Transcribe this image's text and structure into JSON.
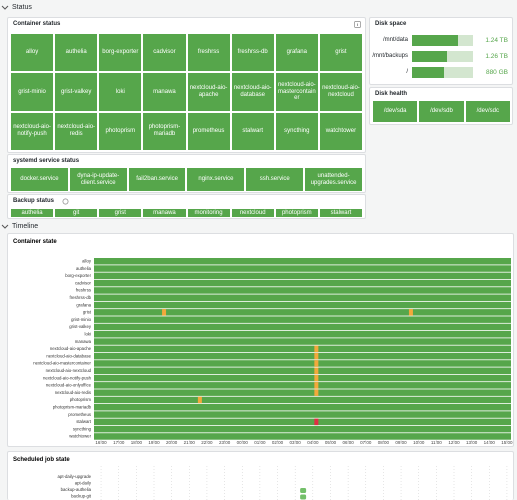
{
  "status_row": {
    "title": "Status"
  },
  "timeline_row": {
    "title": "Timeline"
  },
  "container_status": {
    "title": "Container status",
    "color": "#56a64b",
    "items": [
      "alloy",
      "authelia",
      "borg-exporter",
      "cadvisor",
      "freshrss",
      "freshrss-db",
      "grafana",
      "grist",
      "grist-minio",
      "grist-valkey",
      "loki",
      "manawa",
      "nextcloud-aio-apache",
      "nextcloud-aio-database",
      "nextcloud-aio-mastercontainer",
      "nextcloud-aio-nextcloud",
      "nextcloud-aio-notify-push",
      "nextcloud-aio-redis",
      "photoprism",
      "photoprism-mariadb",
      "prometheus",
      "stalwart",
      "syncthing",
      "watchtower"
    ]
  },
  "systemd_status": {
    "title": "systemd service status",
    "items": [
      "docker.service",
      "dyna-ip-update-client.service",
      "fail2ban.service",
      "nginx.service",
      "ssh.service",
      "unattended-upgrades.service"
    ]
  },
  "backup_status": {
    "title": "Backup status",
    "items": [
      "authelia",
      "git",
      "grist",
      "manawa",
      "monitoring",
      "nextcloud",
      "photoprism",
      "stalwart"
    ]
  },
  "disk_space": {
    "title": "Disk space",
    "rows": [
      {
        "mount": "/mnt/data",
        "value_label": "1.24 TB",
        "percent_used": 75
      },
      {
        "mount": "/mnt/backups",
        "value_label": "1.26 TB",
        "percent_used": 58
      },
      {
        "mount": "/",
        "value_label": "880 GB",
        "percent_used": 52
      }
    ]
  },
  "disk_health": {
    "title": "Disk health",
    "items": [
      "/dev/sda",
      "/dev/sdb",
      "/dev/sdc"
    ]
  },
  "chart_data": {
    "type": "state-timeline",
    "title": "Container state",
    "color": "#56a64b",
    "categories": [
      "alloy",
      "authelia",
      "borg-exporter",
      "cadvisor",
      "freshrss",
      "freshrss-db",
      "grafana",
      "grist",
      "grist-minio",
      "grist-valkey",
      "loki",
      "manawa",
      "nextcloud-aio-apache",
      "nextcloud-aio-database",
      "nextcloud-aio-mastercontainer",
      "nextcloud-aio-nextcloud",
      "nextcloud-aio-notify-push",
      "nextcloud-aio-onlyoffice",
      "nextcloud-aio-redis",
      "photoprism",
      "photoprism-mariadb",
      "prometheus",
      "stalwart",
      "syncthing",
      "watchtower"
    ],
    "xlim": [
      -0.4,
      23.23
    ],
    "xticks": [
      {
        "value": 0,
        "label": "16:00"
      },
      {
        "value": 1,
        "label": "17:00"
      },
      {
        "value": 2,
        "label": "18:00"
      },
      {
        "value": 3,
        "label": "19:00"
      },
      {
        "value": 4,
        "label": "20:00"
      },
      {
        "value": 5,
        "label": "21:00"
      },
      {
        "value": 6,
        "label": "22:00"
      },
      {
        "value": 7,
        "label": "23:00"
      },
      {
        "value": 8,
        "label": "00:00"
      },
      {
        "value": 9,
        "label": "01:00"
      },
      {
        "value": 10,
        "label": "02:00"
      },
      {
        "value": 11,
        "label": "03:00"
      },
      {
        "value": 12,
        "label": "04:00"
      },
      {
        "value": 13,
        "label": "05:00"
      },
      {
        "value": 14,
        "label": "06:00"
      },
      {
        "value": 15,
        "label": "07:00"
      },
      {
        "value": 16,
        "label": "08:00"
      },
      {
        "value": 17,
        "label": "09:00"
      },
      {
        "value": 18,
        "label": "10:00"
      },
      {
        "value": 19,
        "label": "11:00"
      },
      {
        "value": 20,
        "label": "12:00"
      },
      {
        "value": 21,
        "label": "13:00"
      },
      {
        "value": 22,
        "label": "14:00"
      },
      {
        "value": 23,
        "label": "15:00"
      }
    ],
    "events": [
      {
        "row": 7,
        "x": 3.57,
        "color": "#f2a93b"
      },
      {
        "row": 7,
        "x": 17.56,
        "color": "#f2a93b"
      },
      {
        "row": 19,
        "x": 5.6,
        "color": "#f2a93b"
      },
      {
        "row": 12,
        "x": 12.2,
        "color": "#f2a93b"
      },
      {
        "row": 13,
        "x": 12.2,
        "color": "#f2a93b"
      },
      {
        "row": 14,
        "x": 12.2,
        "color": "#f2a93b"
      },
      {
        "row": 15,
        "x": 12.2,
        "color": "#f2a93b"
      },
      {
        "row": 16,
        "x": 12.2,
        "color": "#f2a93b"
      },
      {
        "row": 17,
        "x": 12.2,
        "color": "#f2a93b"
      },
      {
        "row": 18,
        "x": 12.2,
        "color": "#f2a93b"
      },
      {
        "row": 22,
        "x": 12.2,
        "color": "#e02f44"
      }
    ]
  },
  "scheduled_jobs": {
    "title": "Scheduled job state",
    "color": "#73bf69",
    "categories": [
      "apt-daily-upgrade",
      "apt-daily",
      "backup-authelia",
      "backup-git"
    ],
    "events": [
      {
        "row": 2,
        "x": 11.45
      },
      {
        "row": 3,
        "x": 11.45
      }
    ]
  }
}
